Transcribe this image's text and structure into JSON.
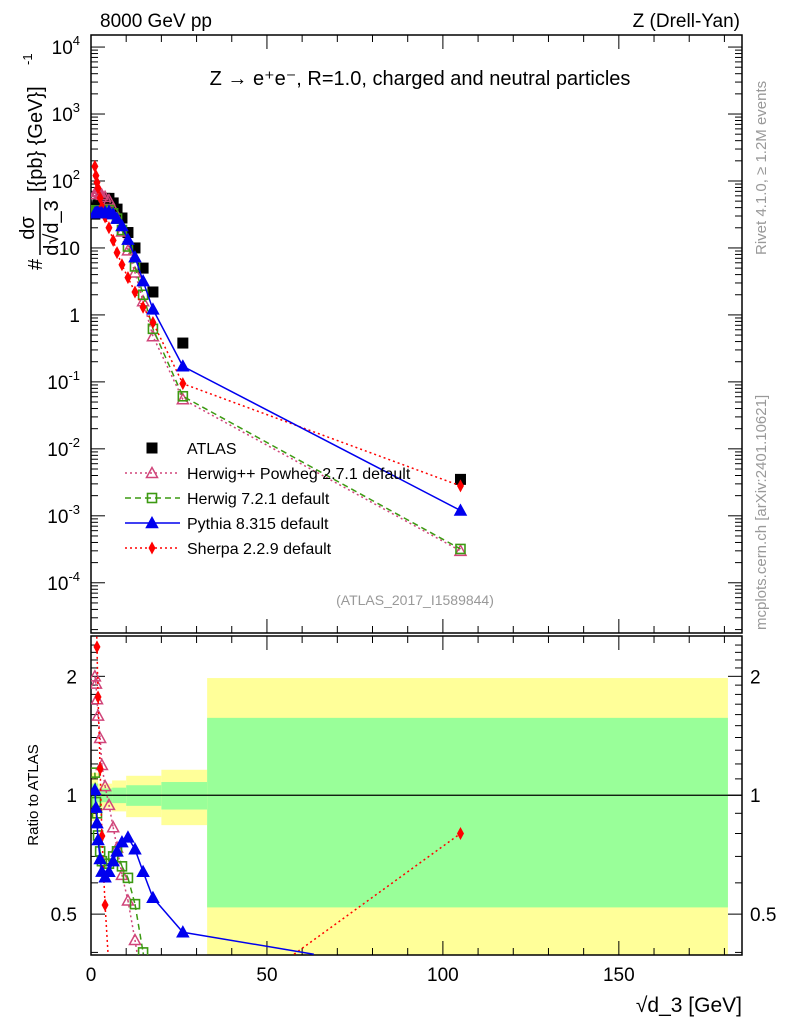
{
  "header": {
    "left": "8000 GeV pp",
    "right": "Z (Drell-Yan)"
  },
  "side_labels": {
    "rivet": "Rivet 4.1.0, ≥ 1.2M events",
    "mcplots": "mcplots.cern.ch [arXiv:2401.10621]"
  },
  "chart_data": {
    "type": "scatter",
    "title": "Z → e⁺e⁻, R=1.0, charged and neutral particles",
    "analysis_id": "(ATLAS_2017_I1589844)",
    "xlabel": "√d_3 [GeV]",
    "ylabel": "# dσ / d√d_3 [{pb} {GeV}⁻¹]",
    "ylabel_parts": {
      "hash": "#",
      "num": "dσ",
      "den": "d√d_3",
      "units": "[{pb} {GeV}]",
      "exp": "-1"
    },
    "ratio_ylabel": "Ratio to ATLAS",
    "xlim": [
      0,
      185
    ],
    "ylim_log10": [
      -4.75,
      4.18
    ],
    "ratio_ylim": [
      0.394,
      2.53
    ],
    "x_ticks": [
      0,
      50,
      100,
      150
    ],
    "x_tick_labels": [
      "0",
      "50",
      "100",
      "150"
    ],
    "y_ticks": [
      {
        "value": 10000,
        "base": "10",
        "exp": "4"
      },
      {
        "value": 1000,
        "base": "10",
        "exp": "3"
      },
      {
        "value": 100,
        "base": "10",
        "exp": "2"
      },
      {
        "value": 10,
        "base": "10",
        "exp": ""
      },
      {
        "value": 1,
        "base": "1",
        "exp": ""
      },
      {
        "value": 0.1,
        "base": "10",
        "exp": "-1"
      },
      {
        "value": 0.01,
        "base": "10",
        "exp": "-2"
      },
      {
        "value": 0.001,
        "base": "10",
        "exp": "-3"
      },
      {
        "value": 0.0001,
        "base": "10",
        "exp": "-4"
      }
    ],
    "ratio_ticks": [
      {
        "value": 2,
        "label": "2"
      },
      {
        "value": 1,
        "label": "1"
      },
      {
        "value": 0.5,
        "label": "0.5"
      }
    ],
    "legend_position": "lower-left",
    "x": [
      1.1,
      1.4,
      1.7,
      2.0,
      2.6,
      3.1,
      4.0,
      5.1,
      6.3,
      7.4,
      8.8,
      10.5,
      12.5,
      14.8,
      17.6,
      26.1,
      105
    ],
    "series": [
      {
        "name": "ATLAS",
        "color": "#000000",
        "marker": "square-filled",
        "line": "none",
        "values": [
          32,
          36,
          40,
          44,
          48,
          52,
          55,
          55,
          47,
          38,
          28,
          17,
          10,
          5.0,
          2.2,
          0.38,
          0.0035
        ]
      },
      {
        "name": "Herwig++ Powheg 2.7.1 default",
        "color": "#d0457a",
        "marker": "triangle-open",
        "line": "dotted",
        "values": [
          64,
          69,
          70,
          70,
          67,
          62,
          58,
          52,
          39,
          28,
          17.6,
          9.2,
          4.3,
          1.6,
          0.48,
          0.055,
          0.0003
        ]
      },
      {
        "name": "Herwig 7.2.1 default",
        "color": "#3c9a12",
        "marker": "square-open",
        "line": "dashed",
        "values": [
          36.5,
          34.6,
          36,
          34.8,
          34.6,
          35.4,
          36.9,
          36.9,
          32.9,
          27.4,
          18.5,
          10.5,
          5.3,
          2.0,
          0.62,
          0.061,
          0.00032
        ]
      },
      {
        "name": "Pythia 8.315 default",
        "color": "#0000ee",
        "marker": "triangle-filled",
        "line": "solid",
        "values": [
          33,
          33.5,
          34,
          33.9,
          33.1,
          33.3,
          34.1,
          35.2,
          32,
          27.4,
          21.3,
          13.3,
          7.3,
          3.2,
          1.21,
          0.171,
          0.0012
        ]
      },
      {
        "name": "Sherpa 2.2.9 default",
        "color": "#ff0000",
        "marker": "diamond-filled",
        "line": "dotted",
        "values": [
          165,
          120,
          95,
          78,
          56,
          41,
          29,
          20,
          13,
          8.5,
          5.6,
          3.6,
          2.2,
          1.3,
          0.77,
          0.094,
          0.0028
        ]
      }
    ],
    "uncertainty_bands": {
      "inner_color": "#99ff99",
      "outer_color": "#ffff99",
      "bins": [
        {
          "x0": 0,
          "x1": 2,
          "inner": [
            0.93,
            1.07
          ],
          "outer": [
            0.86,
            1.14
          ]
        },
        {
          "x0": 2,
          "x1": 6,
          "inner": [
            0.96,
            1.04
          ],
          "outer": [
            0.93,
            1.07
          ]
        },
        {
          "x0": 6,
          "x1": 10,
          "inner": [
            0.955,
            1.045
          ],
          "outer": [
            0.91,
            1.09
          ]
        },
        {
          "x0": 10,
          "x1": 20,
          "inner": [
            0.94,
            1.06
          ],
          "outer": [
            0.88,
            1.12
          ]
        },
        {
          "x0": 20,
          "x1": 33,
          "inner": [
            0.92,
            1.08
          ],
          "outer": [
            0.84,
            1.16
          ]
        },
        {
          "x0": 33,
          "x1": 181,
          "inner": [
            0.52,
            1.57
          ],
          "outer": [
            0.3,
            1.98
          ]
        }
      ]
    }
  }
}
